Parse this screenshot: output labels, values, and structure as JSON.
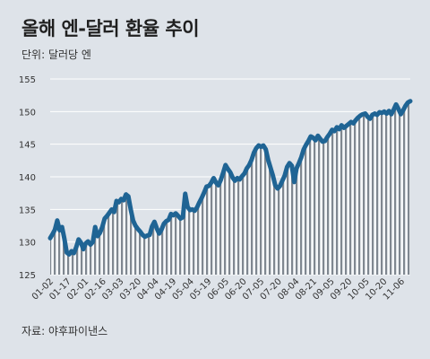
{
  "header": {
    "title": "올해 엔-달러 환율 추이",
    "unit": "단위: 달러당 엔"
  },
  "footer": {
    "source": "자료: 야후파이낸스"
  },
  "chart_data": {
    "type": "area",
    "ylim": [
      125,
      155
    ],
    "yticks": [
      125,
      130,
      135,
      140,
      145,
      150,
      155
    ],
    "xticks": [
      "01-02",
      "01-17",
      "02-01",
      "02-16",
      "03-03",
      "03-20",
      "04-04",
      "04-19",
      "05-04",
      "05-19",
      "06-05",
      "06-20",
      "07-05",
      "07-20",
      "08-04",
      "08-21",
      "09-05",
      "09-20",
      "10-05",
      "10-20",
      "11-06"
    ],
    "grid": true,
    "colors": {
      "line": "#1f6494",
      "fill_stripe": "#7f8790",
      "grid": "#ffffff"
    },
    "series": [
      {
        "values": [
          130.6,
          131.2,
          131.9,
          133.3,
          131.8,
          132.3,
          130.5,
          128.4,
          128.1,
          128.6,
          128.3,
          129.2,
          130.4,
          129.9,
          128.9,
          129.8,
          130.1,
          129.6,
          130.0,
          132.3,
          130.9,
          131.4,
          132.3,
          133.6,
          134.0,
          134.5,
          135.0,
          134.6,
          136.3,
          136.1,
          136.6,
          136.4,
          137.3,
          137.0,
          135.0,
          133.3,
          132.5,
          132.0,
          131.6,
          131.1,
          130.8,
          131.0,
          131.1,
          132.4,
          133.1,
          132.1,
          131.3,
          131.9,
          132.8,
          133.2,
          133.4,
          134.3,
          134.1,
          134.4,
          134.0,
          133.6,
          133.8,
          137.4,
          135.4,
          134.9,
          135.0,
          134.8,
          135.3,
          136.1,
          136.8,
          137.6,
          138.5,
          138.6,
          139.1,
          139.8,
          139.1,
          138.7,
          139.5,
          140.6,
          141.8,
          141.2,
          140.7,
          139.9,
          139.4,
          139.8,
          139.6,
          140.1,
          140.5,
          141.3,
          141.8,
          142.6,
          143.7,
          144.4,
          144.8,
          144.6,
          144.8,
          144.2,
          142.6,
          141.4,
          140.2,
          138.7,
          138.2,
          138.6,
          139.4,
          140.2,
          141.5,
          142.1,
          141.7,
          139.2,
          141.3,
          142.1,
          143.0,
          144.2,
          144.9,
          145.5,
          146.2,
          146.0,
          145.6,
          146.3,
          145.8,
          145.4,
          145.5,
          146.1,
          146.6,
          147.2,
          147.0,
          147.6,
          147.3,
          147.9,
          147.5,
          147.8,
          148.1,
          148.4,
          148.2,
          148.7,
          149.1,
          149.4,
          149.6,
          149.7,
          149.2,
          148.9,
          149.5,
          149.7,
          149.5,
          149.9,
          149.8,
          150.0,
          149.7,
          150.1,
          149.6,
          150.3,
          151.1,
          150.4,
          149.6,
          150.2,
          150.9,
          151.4,
          151.6
        ]
      }
    ]
  }
}
